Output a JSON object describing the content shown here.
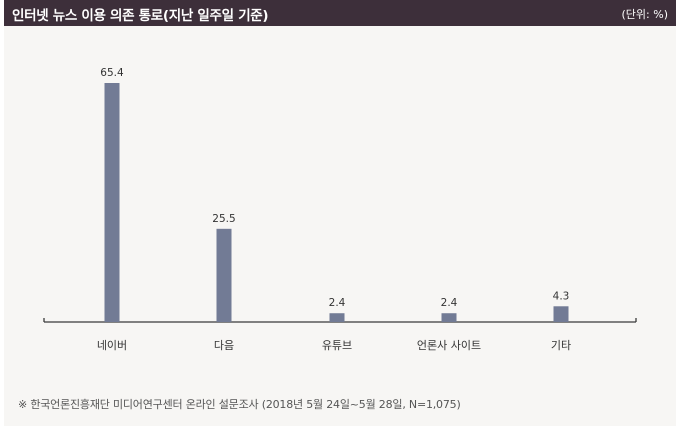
{
  "header": {
    "title": "인터넷 뉴스 이용 의존 통로(지난 일주일 기준)",
    "unit": "(단위: %)"
  },
  "footnote": "※  한국언론진흥재단 미디어연구센터 온라인 설문조사 (2018년 5월 24일~5월 28일, N=1,075)",
  "colors": {
    "header_bg": "#3d2f3a",
    "bar": "#727b95",
    "axis": "#3a3a3a",
    "background": "#f7f6f4"
  },
  "chart_data": {
    "type": "bar",
    "title": "인터넷 뉴스 이용 의존 통로(지난 일주일 기준)",
    "categories": [
      "네이버",
      "다음",
      "유튜브",
      "언론사 사이트",
      "기타"
    ],
    "values": [
      65.4,
      25.5,
      2.4,
      2.4,
      4.3
    ],
    "value_labels": [
      "65.4",
      "25.5",
      "2.4",
      "2.4",
      "4.3"
    ],
    "xlabel": "",
    "ylabel": "",
    "ylim": [
      0,
      65.4
    ],
    "grid": false,
    "legend": "none"
  }
}
